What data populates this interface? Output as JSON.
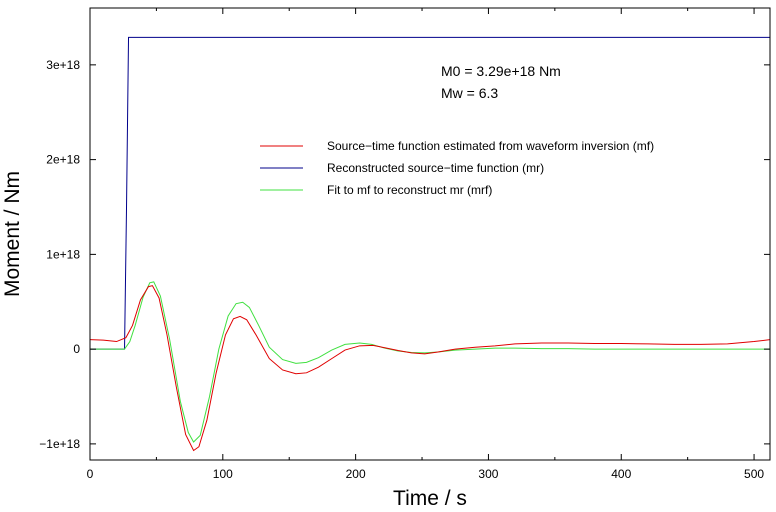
{
  "chart_data": {
    "type": "line",
    "xlabel": "Time / s",
    "ylabel": "Moment / Nm",
    "xlim": [
      0,
      512
    ],
    "ylim": [
      -1.17e+18,
      3.6e+18
    ],
    "xticks": [
      0,
      100,
      200,
      300,
      400,
      500
    ],
    "xtick_labels": [
      "0",
      "100",
      "200",
      "300",
      "400",
      "500"
    ],
    "yticks": [
      -1e+18,
      0,
      1e+18,
      2e+18,
      3e+18
    ],
    "ytick_labels": [
      "−1e+18",
      "0",
      "1e+18",
      "2e+18",
      "3e+18"
    ],
    "grid": false,
    "legend_position": "upper-right",
    "annotations": [
      "M0 = 3.29e+18 Nm",
      "Mw = 6.3"
    ],
    "series": [
      {
        "name": "Source−time function estimated from waveform inversion (mf)",
        "color": "#e00000",
        "x": [
          0,
          10,
          20,
          27,
          32,
          38,
          44,
          47,
          52,
          58,
          65,
          72,
          78,
          82,
          88,
          95,
          102,
          108,
          113,
          118,
          125,
          135,
          145,
          155,
          163,
          172,
          182,
          192,
          203,
          213,
          222,
          232,
          242,
          252,
          262,
          275,
          290,
          305,
          320,
          340,
          360,
          380,
          400,
          420,
          440,
          460,
          480,
          500,
          512
        ],
        "y": [
          1e+17,
          9.5e+16,
          8e+16,
          1.2e+17,
          2.5e+17,
          5.2e+17,
          6.6e+17,
          6.7e+17,
          5.4e+17,
          1.5e+17,
          -4e+17,
          -9e+17,
          -1.07e+18,
          -1.03e+18,
          -7.5e+17,
          -2.5e+17,
          1.5e+17,
          3.2e+17,
          3.45e+17,
          3.1e+17,
          1.5e+17,
          -1e+17,
          -2.2e+17,
          -2.6e+17,
          -2.5e+17,
          -1.9e+17,
          -1e+17,
          -1e+16,
          3.5e+16,
          4e+16,
          1.5e+16,
          -1.5e+16,
          -4e+16,
          -5e+16,
          -3e+16,
          0,
          2e+16,
          3.5e+16,
          5.5e+16,
          6.5e+16,
          6.5e+16,
          6e+16,
          6e+16,
          5.5e+16,
          5e+16,
          5e+16,
          5.5e+16,
          8e+16,
          1e+17
        ]
      },
      {
        "name": "Reconstructed source−time function (mr)",
        "color": "#00008b",
        "x": [
          0,
          26,
          27.5,
          29,
          512
        ],
        "y": [
          0,
          0,
          1.5e+18,
          3.29e+18,
          3.29e+18
        ]
      },
      {
        "name": "Fit to mf to reconstruct mr (mrf)",
        "color": "#40e040",
        "x": [
          0,
          26,
          30,
          34,
          40,
          45,
          48,
          53,
          60,
          68,
          74,
          78,
          83,
          90,
          97,
          104,
          110,
          115,
          120,
          127,
          135,
          145,
          155,
          163,
          172,
          182,
          192,
          203,
          212,
          222,
          232,
          242,
          252,
          262,
          275,
          290,
          305,
          320,
          340,
          360,
          380,
          400,
          420,
          450,
          480,
          512
        ],
        "y": [
          0,
          0,
          8e+16,
          2.5e+17,
          5.5e+17,
          7e+17,
          7.1e+17,
          5.6e+17,
          1e+17,
          -5.5e+17,
          -8.8e+17,
          -9.8e+17,
          -9.1e+17,
          -5e+17,
          0,
          3.5e+17,
          4.8e+17,
          4.95e+17,
          4.4e+17,
          2.5e+17,
          2e+16,
          -1.1e+17,
          -1.5e+17,
          -1.4e+17,
          -9e+16,
          -1e+16,
          5e+16,
          6.5e+16,
          5e+16,
          1e+16,
          -2e+16,
          -3.5e+16,
          -4e+16,
          -3e+16,
          -1e+16,
          0,
          1e+16,
          1e+16,
          5000000000000000.0,
          5000000000000000.0,
          0,
          0,
          0,
          0,
          0,
          0
        ]
      }
    ]
  }
}
